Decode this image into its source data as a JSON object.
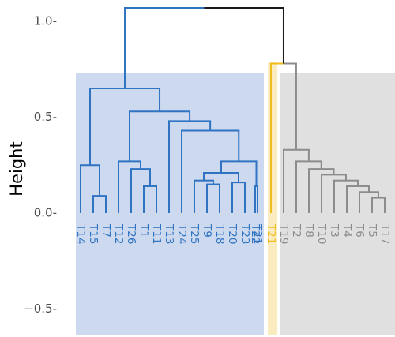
{
  "chart_data": {
    "type": "dendrogram",
    "ylabel": "Height",
    "ylim": [
      -0.64,
      1.08
    ],
    "yticks": [
      1.0,
      0.5,
      0.0,
      -0.5
    ],
    "ytick_labels": [
      "1.0-",
      "0.5-",
      "0.0-",
      "−0.5-"
    ],
    "grid": false,
    "clusters": [
      {
        "color": "#2f73c3",
        "fill": "#cdd9ee",
        "leaves": [
          "T14",
          "T15",
          "T7",
          "T12",
          "T26",
          "T1",
          "T11",
          "T13",
          "T24",
          "T25",
          "T9",
          "T18",
          "T20",
          "T23",
          "T21",
          "T22"
        ]
      },
      {
        "color": "#f0be1e",
        "fill": "#fbecc0",
        "leaves": [
          "T21"
        ]
      },
      {
        "color": "#8c8c8c",
        "fill": "#e0e0e0",
        "leaves": [
          "T19",
          "T2",
          "T8",
          "T10",
          "T3",
          "T4",
          "T6",
          "T5",
          "T17"
        ]
      }
    ],
    "leaf_labels": [
      "T14",
      "T15",
      "T7",
      "T12",
      "T26",
      "T1",
      "T11",
      "T13",
      "T24",
      "T25",
      "T9",
      "T18",
      "T20",
      "T23",
      "T21",
      "T22",
      "T21",
      "T19",
      "T2",
      "T8",
      "T10",
      "T3",
      "T4",
      "T6",
      "T5",
      "T17"
    ],
    "merges": [
      {
        "left": 2,
        "right": 3,
        "height": 0.09,
        "color": "blue"
      },
      {
        "left": 1,
        "right": -1,
        "height": 0.25,
        "color": "blue"
      },
      {
        "left": 6,
        "right": 7,
        "height": 0.14,
        "color": "blue"
      },
      {
        "left": 5,
        "right": -3,
        "height": 0.23,
        "color": "blue"
      },
      {
        "left": 4,
        "right": -4,
        "height": 0.27,
        "color": "blue"
      },
      {
        "left": 11,
        "right": 12,
        "height": 0.15,
        "color": "blue"
      },
      {
        "left": 13,
        "right": 14,
        "height": 0.16,
        "color": "blue"
      },
      {
        "left": 10,
        "right": -6,
        "height": 0.17,
        "color": "blue"
      },
      {
        "left": 15,
        "right": 16,
        "height": 0.14,
        "color": "blue"
      },
      {
        "left": -7,
        "right": -8,
        "height": 0.21,
        "color": "blue"
      },
      {
        "left": -9,
        "right": -10,
        "height": 0.27,
        "color": "blue"
      },
      {
        "left": 9,
        "right": -11,
        "height": 0.43,
        "color": "blue"
      },
      {
        "left": 8,
        "right": -12,
        "height": 0.48,
        "color": "blue"
      },
      {
        "left": -5,
        "right": -13,
        "height": 0.53,
        "color": "blue"
      },
      {
        "left": -2,
        "right": -14,
        "height": 0.65,
        "color": "blue"
      },
      {
        "left": 25,
        "right": 26,
        "height": 0.08,
        "color": "grey"
      },
      {
        "left": 24,
        "right": -16,
        "height": 0.11,
        "color": "grey"
      },
      {
        "left": 23,
        "right": -17,
        "height": 0.14,
        "color": "grey"
      },
      {
        "left": 22,
        "right": -18,
        "height": 0.17,
        "color": "grey"
      },
      {
        "left": 21,
        "right": -19,
        "height": 0.2,
        "color": "grey"
      },
      {
        "left": 20,
        "right": -20,
        "height": 0.23,
        "color": "grey"
      },
      {
        "left": 19,
        "right": -21,
        "height": 0.27,
        "color": "grey"
      },
      {
        "left": 18,
        "right": -22,
        "height": 0.33,
        "color": "grey"
      },
      {
        "left": 17,
        "right": -23,
        "height": 0.78,
        "color": "yellow-grey"
      },
      {
        "left": -15,
        "right": -24,
        "height": 1.07,
        "color": "blue-black"
      }
    ]
  }
}
